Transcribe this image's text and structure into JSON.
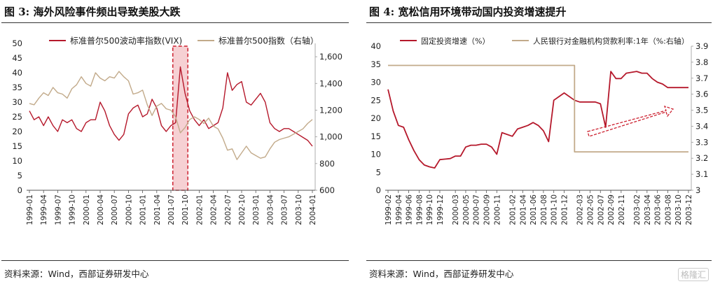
{
  "charts": [
    {
      "figure_label": "图 3:",
      "title": "海外风险事件频出导致美股大跌",
      "source": "资料来源：Wind，西部证券研发中心"
    },
    {
      "figure_label": "图 4:",
      "title": "宽松信用环境带动国内投资增速提升",
      "source": "资料来源：Wind，西部证券研发中心"
    }
  ],
  "watermark": "格隆汇",
  "chart_data": [
    {
      "type": "line",
      "legend_position": "top",
      "x_ticks": [
        "1999-01",
        "1999-04",
        "1999-07",
        "1999-10",
        "2000-01",
        "2000-04",
        "2000-07",
        "2000-10",
        "2001-01",
        "2001-04",
        "2001-07",
        "2001-10",
        "2002-01",
        "2002-04",
        "2002-07",
        "2002-10",
        "2003-01",
        "2003-04",
        "2003-07",
        "2003-10",
        "2004-01"
      ],
      "ylim_left": [
        0,
        50
      ],
      "yticks_left": [
        "0",
        "5",
        "10",
        "15",
        "20",
        "25",
        "30",
        "35",
        "40",
        "45",
        "50"
      ],
      "ylim_right": [
        600,
        1700
      ],
      "yticks_right": [
        "600",
        "800",
        "1,000",
        "1,200",
        "1,400",
        "1,600"
      ],
      "highlight_range": [
        "2001-08",
        "2001-10"
      ],
      "series": [
        {
          "name": "标准普尔500波动率指数(VIX)",
          "axis": "left",
          "color": "#b5182b",
          "x": [
            "1999-01",
            "1999-02",
            "1999-03",
            "1999-04",
            "1999-05",
            "1999-06",
            "1999-07",
            "1999-08",
            "1999-09",
            "1999-10",
            "1999-11",
            "1999-12",
            "2000-01",
            "2000-02",
            "2000-03",
            "2000-04",
            "2000-05",
            "2000-06",
            "2000-07",
            "2000-08",
            "2000-09",
            "2000-10",
            "2000-11",
            "2000-12",
            "2001-01",
            "2001-02",
            "2001-03",
            "2001-04",
            "2001-05",
            "2001-06",
            "2001-07",
            "2001-08",
            "2001-09",
            "2001-10",
            "2001-11",
            "2001-12",
            "2002-01",
            "2002-02",
            "2002-03",
            "2002-04",
            "2002-05",
            "2002-06",
            "2002-07",
            "2002-08",
            "2002-09",
            "2002-10",
            "2002-11",
            "2002-12",
            "2003-01",
            "2003-02",
            "2003-03",
            "2003-04",
            "2003-05",
            "2003-06",
            "2003-07",
            "2003-08",
            "2003-09",
            "2003-10",
            "2003-11",
            "2003-12",
            "2004-01"
          ],
          "values": [
            27,
            24,
            25,
            22,
            25,
            22,
            20,
            24,
            23,
            24,
            21,
            20,
            23,
            24,
            24,
            30,
            27,
            22,
            19,
            17,
            19,
            26,
            28,
            29,
            25,
            26,
            31,
            28,
            22,
            20,
            22,
            23,
            42,
            33,
            27,
            24,
            22,
            24,
            21,
            22,
            23,
            28,
            40,
            34,
            36,
            37,
            30,
            29,
            31,
            33,
            30,
            23,
            21,
            20,
            21,
            21,
            20,
            19,
            18,
            17,
            15
          ]
        },
        {
          "name": "标准普尔500指数（右轴）",
          "axis": "right",
          "color": "#c2aa8a",
          "x": [
            "1999-01",
            "1999-02",
            "1999-03",
            "1999-04",
            "1999-05",
            "1999-06",
            "1999-07",
            "1999-08",
            "1999-09",
            "1999-10",
            "1999-11",
            "1999-12",
            "2000-01",
            "2000-02",
            "2000-03",
            "2000-04",
            "2000-05",
            "2000-06",
            "2000-07",
            "2000-08",
            "2000-09",
            "2000-10",
            "2000-11",
            "2000-12",
            "2001-01",
            "2001-02",
            "2001-03",
            "2001-04",
            "2001-05",
            "2001-06",
            "2001-07",
            "2001-08",
            "2001-09",
            "2001-10",
            "2001-11",
            "2001-12",
            "2002-01",
            "2002-02",
            "2002-03",
            "2002-04",
            "2002-05",
            "2002-06",
            "2002-07",
            "2002-08",
            "2002-09",
            "2002-10",
            "2002-11",
            "2002-12",
            "2003-01",
            "2003-02",
            "2003-03",
            "2003-04",
            "2003-05",
            "2003-06",
            "2003-07",
            "2003-08",
            "2003-09",
            "2003-10",
            "2003-11",
            "2003-12",
            "2004-01"
          ],
          "values": [
            1250,
            1240,
            1290,
            1330,
            1310,
            1370,
            1330,
            1320,
            1290,
            1360,
            1390,
            1450,
            1400,
            1380,
            1480,
            1440,
            1420,
            1450,
            1440,
            1490,
            1450,
            1420,
            1320,
            1330,
            1350,
            1240,
            1160,
            1230,
            1250,
            1210,
            1200,
            1150,
            1030,
            1070,
            1130,
            1150,
            1130,
            1100,
            1140,
            1080,
            1060,
            990,
            900,
            910,
            830,
            880,
            930,
            880,
            860,
            840,
            850,
            910,
            960,
            980,
            990,
            1000,
            1020,
            1040,
            1060,
            1100,
            1130
          ]
        }
      ]
    },
    {
      "type": "line",
      "legend_position": "top",
      "x_ticks": [
        "1999-02",
        "1999-04",
        "1999-06",
        "1999-08",
        "1999-10",
        "1999-12",
        "2000-03",
        "2000-05",
        "2000-07",
        "2000-09",
        "2000-11",
        "2001-02",
        "2001-04",
        "2001-06",
        "2001-08",
        "2001-10",
        "2001-12",
        "2002-03",
        "2002-05",
        "2002-07",
        "2002-09",
        "2002-11",
        "2003-02",
        "2003-04",
        "2003-06",
        "2003-08",
        "2003-10",
        "2003-12"
      ],
      "ylim_left": [
        0,
        40
      ],
      "yticks_left": [
        "0",
        "5",
        "10",
        "15",
        "20",
        "25",
        "30",
        "35",
        "40"
      ],
      "ylim_right": [
        3.0,
        3.9
      ],
      "yticks_right": [
        "3",
        "3.1",
        "3.2",
        "3.3",
        "3.4",
        "3.5",
        "3.6",
        "3.7",
        "3.8",
        "3.9"
      ],
      "series": [
        {
          "name": "固定投资增速（%）",
          "axis": "left",
          "color": "#b5182b",
          "x": [
            "1999-02",
            "1999-03",
            "1999-04",
            "1999-05",
            "1999-06",
            "1999-07",
            "1999-08",
            "1999-09",
            "1999-10",
            "1999-11",
            "1999-12",
            "2000-02",
            "2000-03",
            "2000-04",
            "2000-05",
            "2000-06",
            "2000-07",
            "2000-08",
            "2000-09",
            "2000-10",
            "2000-11",
            "2000-12",
            "2001-02",
            "2001-03",
            "2001-04",
            "2001-05",
            "2001-06",
            "2001-07",
            "2001-08",
            "2001-09",
            "2001-10",
            "2001-11",
            "2001-12",
            "2002-02",
            "2002-03",
            "2002-04",
            "2002-05",
            "2002-06",
            "2002-07",
            "2002-08",
            "2002-09",
            "2002-10",
            "2002-11",
            "2002-12",
            "2003-02",
            "2003-03",
            "2003-04",
            "2003-05",
            "2003-06",
            "2003-07",
            "2003-08",
            "2003-09",
            "2003-10",
            "2003-11",
            "2003-12"
          ],
          "values": [
            28,
            22,
            18,
            17.5,
            14,
            11,
            8.5,
            7,
            6.5,
            6.2,
            8.5,
            8.8,
            9.5,
            9.5,
            12,
            12.5,
            12.5,
            12.8,
            12.8,
            12,
            10,
            16,
            15,
            17,
            17.5,
            18,
            18.8,
            18,
            16.5,
            13.5,
            25,
            26,
            27,
            25,
            24.5,
            24.5,
            24.5,
            24.5,
            24,
            17.5,
            33,
            31,
            31,
            32.5,
            33,
            32.5,
            32.5,
            31,
            30,
            29.5,
            28.5,
            28.5,
            28.5,
            28.5,
            28.5
          ]
        },
        {
          "name": "人民银行对金融机构贷款利率:1年（%:右轴）",
          "axis": "right",
          "color": "#c2aa8a",
          "x": [
            "1999-02",
            "2002-02",
            "2002-02",
            "2003-12"
          ],
          "values": [
            3.78,
            3.78,
            3.24,
            3.24
          ]
        }
      ]
    }
  ]
}
